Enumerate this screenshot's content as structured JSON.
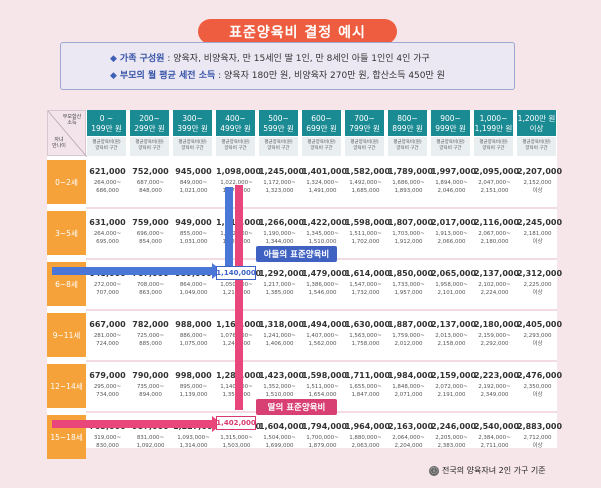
{
  "title": "표준양육비 결정 예시",
  "info": [
    {
      "label": "가족 구성원",
      "text": "양육자, 비양육자, 만 15세인 딸 1인, 만 8세인 아들 1인인 4인 가구"
    },
    {
      "label": "부모의 월 평균 세전 소득",
      "text": "양육자 180만 원, 비양육자 270만 원, 합산소득 450만 원"
    }
  ],
  "corner": {
    "top": "부모합산\n소득",
    "bottom": "자녀\n만나이"
  },
  "columns": [
    "0 ~\n199만 원",
    "200~\n299만 원",
    "300~\n399만 원",
    "400~\n499만 원",
    "500~\n599만 원",
    "600~\n699만 원",
    "700~\n799만 원",
    "800~\n899만 원",
    "900~\n999만 원",
    "1,000~\n1,199만 원",
    "1,200만 원\n이상"
  ],
  "col_sub": "평균양육비(원)\n양육비 구간",
  "rows": [
    {
      "age": "0~2세",
      "cells": [
        {
          "avg": "621,000",
          "a": "264,000~",
          "b": "686,000"
        },
        {
          "avg": "752,000",
          "a": "687,000~",
          "b": "848,000"
        },
        {
          "avg": "945,000",
          "a": "849,000~",
          "b": "1,021,000"
        },
        {
          "avg": "1,098,000",
          "a": "1,022,000~",
          "b": "1,171,000"
        },
        {
          "avg": "1,245,000",
          "a": "1,172,000~",
          "b": "1,323,000"
        },
        {
          "avg": "1,401,000",
          "a": "1,324,000~",
          "b": "1,491,000"
        },
        {
          "avg": "1,582,000",
          "a": "1,492,000~",
          "b": "1,685,000"
        },
        {
          "avg": "1,789,000",
          "a": "1,686,000~",
          "b": "1,893,000"
        },
        {
          "avg": "1,997,000",
          "a": "1,894,000~",
          "b": "2,046,000"
        },
        {
          "avg": "2,095,000",
          "a": "2,047,000~",
          "b": "2,151,000"
        },
        {
          "avg": "2,207,000",
          "a": "2,152,000",
          "b": "이상"
        }
      ]
    },
    {
      "age": "3~5세",
      "cells": [
        {
          "avg": "631,000",
          "a": "264,000~",
          "b": "695,000"
        },
        {
          "avg": "759,000",
          "a": "696,000~",
          "b": "854,000"
        },
        {
          "avg": "949,000",
          "a": "855,000~",
          "b": "1,031,000"
        },
        {
          "avg": "1,113,000",
          "a": "1,032,000~",
          "b": "1,189,000"
        },
        {
          "avg": "1,266,000",
          "a": "1,190,000~",
          "b": "1,344,000"
        },
        {
          "avg": "1,422,000",
          "a": "1,345,000~",
          "b": "1,510,000"
        },
        {
          "avg": "1,598,000",
          "a": "1,511,000~",
          "b": "1,702,000"
        },
        {
          "avg": "1,807,000",
          "a": "1,703,000~",
          "b": "1,912,000"
        },
        {
          "avg": "2,017,000",
          "a": "1,913,000~",
          "b": "2,066,000"
        },
        {
          "avg": "2,116,000",
          "a": "2,067,000~",
          "b": "2,180,000"
        },
        {
          "avg": "2,245,000",
          "a": "2,181,000",
          "b": "이상"
        }
      ]
    },
    {
      "age": "6~8세",
      "cells": [
        {
          "avg": "648,000",
          "a": "272,000~",
          "b": "707,000"
        },
        {
          "avg": "767,000",
          "a": "708,000~",
          "b": "863,000"
        },
        {
          "avg": "959,000",
          "a": "864,000~",
          "b": "1,049,000"
        },
        {
          "avg": "1,140,000",
          "a": "1,050,000~",
          "b": "1,216,000"
        },
        {
          "avg": "1,292,000",
          "a": "1,217,000~",
          "b": "1,385,000"
        },
        {
          "avg": "1,479,000",
          "a": "1,386,000~",
          "b": "1,546,000"
        },
        {
          "avg": "1,614,000",
          "a": "1,547,000~",
          "b": "1,732,000"
        },
        {
          "avg": "1,850,000",
          "a": "1,733,000~",
          "b": "1,957,000"
        },
        {
          "avg": "2,065,000",
          "a": "1,958,000~",
          "b": "2,101,000"
        },
        {
          "avg": "2,137,000",
          "a": "2,102,000~",
          "b": "2,224,000"
        },
        {
          "avg": "2,312,000",
          "a": "2,225,000",
          "b": "이상"
        }
      ]
    },
    {
      "age": "9~11세",
      "cells": [
        {
          "avg": "667,000",
          "a": "281,000~",
          "b": "724,000"
        },
        {
          "avg": "782,000",
          "a": "725,000~",
          "b": "885,000"
        },
        {
          "avg": "988,000",
          "a": "886,000~",
          "b": "1,075,000"
        },
        {
          "avg": "1,163,000",
          "a": "1,076,000~",
          "b": "1,240,000"
        },
        {
          "avg": "1,318,000",
          "a": "1,241,000~",
          "b": "1,406,000"
        },
        {
          "avg": "1,494,000",
          "a": "1,407,000~",
          "b": "1,562,000"
        },
        {
          "avg": "1,630,000",
          "a": "1,563,000~",
          "b": "1,758,000"
        },
        {
          "avg": "1,887,000",
          "a": "1,759,000~",
          "b": "2,012,000"
        },
        {
          "avg": "2,137,000",
          "a": "2,013,000~",
          "b": "2,158,000"
        },
        {
          "avg": "2,180,000",
          "a": "2,159,000~",
          "b": "2,292,000"
        },
        {
          "avg": "2,405,000",
          "a": "2,293,000",
          "b": "이상"
        }
      ]
    },
    {
      "age": "12~14세",
      "cells": [
        {
          "avg": "679,000",
          "a": "295,000~",
          "b": "734,000"
        },
        {
          "avg": "790,000",
          "a": "735,000~",
          "b": "894,000"
        },
        {
          "avg": "998,000",
          "a": "895,000~",
          "b": "1,139,000"
        },
        {
          "avg": "1,280,000",
          "a": "1,140,000~",
          "b": "1,351,000"
        },
        {
          "avg": "1,423,000",
          "a": "1,352,000~",
          "b": "1,510,000"
        },
        {
          "avg": "1,598,000",
          "a": "1,511,000~",
          "b": "1,654,000"
        },
        {
          "avg": "1,711,000",
          "a": "1,655,000~",
          "b": "1,847,000"
        },
        {
          "avg": "1,984,000",
          "a": "1,848,000~",
          "b": "2,071,000"
        },
        {
          "avg": "2,159,000",
          "a": "2,072,000~",
          "b": "2,191,000"
        },
        {
          "avg": "2,223,000",
          "a": "2,192,000~",
          "b": "2,349,000"
        },
        {
          "avg": "2,476,000",
          "a": "2,350,000",
          "b": "이상"
        }
      ]
    },
    {
      "age": "15~18세",
      "cells": [
        {
          "avg": "703,000",
          "a": "319,000~",
          "b": "830,000"
        },
        {
          "avg": "957,000",
          "a": "831,000~",
          "b": "1,092,000"
        },
        {
          "avg": "1,227,000",
          "a": "1,093,000~",
          "b": "1,314,000"
        },
        {
          "avg": "1,402,000",
          "a": "1,315,000~",
          "b": "1,503,000"
        },
        {
          "avg": "1,604,000",
          "a": "1,504,000~",
          "b": "1,699,000"
        },
        {
          "avg": "1,794,000",
          "a": "1,700,000~",
          "b": "1,879,000"
        },
        {
          "avg": "1,964,000",
          "a": "1,880,000~",
          "b": "2,063,000"
        },
        {
          "avg": "2,163,000",
          "a": "2,064,000~",
          "b": "2,204,000"
        },
        {
          "avg": "2,246,000",
          "a": "2,205,000~",
          "b": "2,383,000"
        },
        {
          "avg": "2,540,000",
          "a": "2,384,000~",
          "b": "2,711,000"
        },
        {
          "avg": "2,883,000",
          "a": "2,712,000",
          "b": "이상"
        }
      ]
    }
  ],
  "highlight_son": {
    "value": "1,140,000",
    "label": "아들의 표준양육비"
  },
  "highlight_daughter": {
    "value": "1,402,000",
    "label": "딸의 표준양육비"
  },
  "footnote": "전국의 양육자녀 2인 가구 기준",
  "colors": {
    "title_bg": "#ee5d3f",
    "header": "#1a8a93",
    "age": "#f5a23b",
    "son": "#4a77d7",
    "daughter": "#e9467c"
  }
}
